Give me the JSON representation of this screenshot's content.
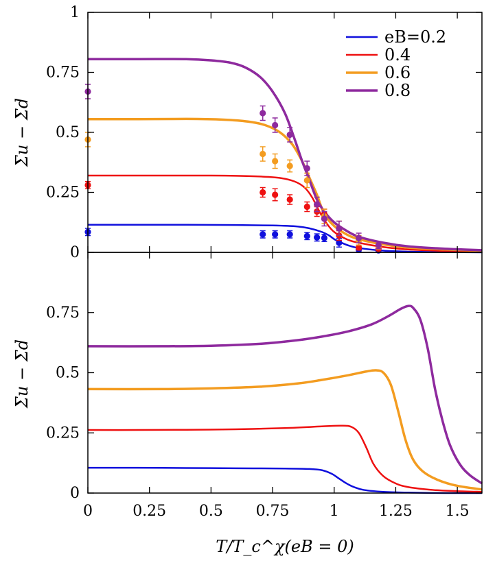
{
  "chart_data": [
    {
      "type": "line",
      "ylabel": "Σu − Σd",
      "xlim": [
        0,
        1.6
      ],
      "ylim": [
        0,
        1
      ],
      "x_ticks": [
        "0",
        "0.25",
        "0.5",
        "0.75",
        "1",
        "1.25",
        "1.5"
      ],
      "y_ticks": [
        "0",
        "0.25",
        "0.5",
        "0.75",
        "1"
      ],
      "legend": {
        "position": "top-right"
      },
      "series": [
        {
          "name": "eB=0.2",
          "color": "#1010dd",
          "curve": [
            [
              0,
              0.115
            ],
            [
              0.2,
              0.115
            ],
            [
              0.4,
              0.115
            ],
            [
              0.6,
              0.114
            ],
            [
              0.75,
              0.112
            ],
            [
              0.85,
              0.108
            ],
            [
              0.9,
              0.1
            ],
            [
              0.95,
              0.085
            ],
            [
              0.98,
              0.07
            ],
            [
              1.0,
              0.055
            ],
            [
              1.03,
              0.04
            ],
            [
              1.06,
              0.028
            ],
            [
              1.1,
              0.018
            ],
            [
              1.2,
              0.007
            ],
            [
              1.3,
              0.003
            ],
            [
              1.45,
              0.001
            ],
            [
              1.6,
              0.0
            ]
          ],
          "points": [
            [
              0,
              0.085,
              0.015
            ],
            [
              0.71,
              0.075,
              0.015
            ],
            [
              0.76,
              0.075,
              0.015
            ],
            [
              0.82,
              0.075,
              0.015
            ],
            [
              0.89,
              0.068,
              0.015
            ],
            [
              0.93,
              0.062,
              0.015
            ],
            [
              0.96,
              0.06,
              0.015
            ],
            [
              1.02,
              0.04,
              0.018
            ],
            [
              1.1,
              0.012,
              0.008
            ],
            [
              1.18,
              0.008,
              0.006
            ]
          ]
        },
        {
          "name": "0.4",
          "color": "#ee1111",
          "curve": [
            [
              0,
              0.32
            ],
            [
              0.3,
              0.32
            ],
            [
              0.5,
              0.32
            ],
            [
              0.6,
              0.319
            ],
            [
              0.7,
              0.316
            ],
            [
              0.78,
              0.31
            ],
            [
              0.84,
              0.295
            ],
            [
              0.88,
              0.27
            ],
            [
              0.91,
              0.23
            ],
            [
              0.94,
              0.17
            ],
            [
              0.97,
              0.12
            ],
            [
              1.0,
              0.085
            ],
            [
              1.05,
              0.055
            ],
            [
              1.1,
              0.04
            ],
            [
              1.2,
              0.022
            ],
            [
              1.3,
              0.012
            ],
            [
              1.45,
              0.006
            ],
            [
              1.6,
              0.003
            ]
          ],
          "points": [
            [
              0,
              0.28,
              0.015
            ],
            [
              0.71,
              0.25,
              0.02
            ],
            [
              0.76,
              0.24,
              0.025
            ],
            [
              0.82,
              0.22,
              0.02
            ],
            [
              0.89,
              0.19,
              0.02
            ],
            [
              0.93,
              0.17,
              0.02
            ],
            [
              0.96,
              0.16,
              0.02
            ],
            [
              1.02,
              0.07,
              0.02
            ],
            [
              1.1,
              0.02,
              0.01
            ],
            [
              1.18,
              0.015,
              0.008
            ]
          ]
        },
        {
          "name": "0.6",
          "color": "#f39c20",
          "curve": [
            [
              0,
              0.555
            ],
            [
              0.2,
              0.555
            ],
            [
              0.4,
              0.556
            ],
            [
              0.55,
              0.553
            ],
            [
              0.65,
              0.545
            ],
            [
              0.72,
              0.53
            ],
            [
              0.78,
              0.5
            ],
            [
              0.83,
              0.45
            ],
            [
              0.87,
              0.38
            ],
            [
              0.9,
              0.31
            ],
            [
              0.93,
              0.24
            ],
            [
              0.96,
              0.16
            ],
            [
              1.0,
              0.11
            ],
            [
              1.05,
              0.075
            ],
            [
              1.1,
              0.055
            ],
            [
              1.2,
              0.033
            ],
            [
              1.3,
              0.02
            ],
            [
              1.45,
              0.012
            ],
            [
              1.6,
              0.007
            ]
          ],
          "points": [
            [
              0,
              0.47,
              0.03
            ],
            [
              0.71,
              0.41,
              0.03
            ],
            [
              0.76,
              0.38,
              0.03
            ],
            [
              0.82,
              0.36,
              0.025
            ],
            [
              0.89,
              0.3,
              0.03
            ],
            [
              0.93,
              0.2,
              0.03
            ],
            [
              0.96,
              0.15,
              0.03
            ],
            [
              1.02,
              0.1,
              0.03
            ],
            [
              1.1,
              0.05,
              0.02
            ],
            [
              1.18,
              0.025,
              0.012
            ]
          ]
        },
        {
          "name": "0.8",
          "color": "#8e2a9e",
          "curve": [
            [
              0,
              0.805
            ],
            [
              0.2,
              0.805
            ],
            [
              0.4,
              0.805
            ],
            [
              0.5,
              0.8
            ],
            [
              0.58,
              0.79
            ],
            [
              0.64,
              0.77
            ],
            [
              0.7,
              0.73
            ],
            [
              0.75,
              0.67
            ],
            [
              0.8,
              0.58
            ],
            [
              0.84,
              0.47
            ],
            [
              0.87,
              0.38
            ],
            [
              0.9,
              0.3
            ],
            [
              0.93,
              0.22
            ],
            [
              0.96,
              0.17
            ],
            [
              1.0,
              0.125
            ],
            [
              1.05,
              0.09
            ],
            [
              1.1,
              0.065
            ],
            [
              1.2,
              0.04
            ],
            [
              1.3,
              0.025
            ],
            [
              1.45,
              0.015
            ],
            [
              1.6,
              0.009
            ]
          ],
          "points": [
            [
              0,
              0.67,
              0.03
            ],
            [
              0.71,
              0.58,
              0.03
            ],
            [
              0.76,
              0.53,
              0.03
            ],
            [
              0.82,
              0.49,
              0.03
            ],
            [
              0.89,
              0.35,
              0.03
            ],
            [
              0.93,
              0.2,
              0.03
            ],
            [
              0.96,
              0.14,
              0.03
            ],
            [
              1.02,
              0.1,
              0.03
            ],
            [
              1.1,
              0.06,
              0.02
            ],
            [
              1.18,
              0.03,
              0.015
            ]
          ]
        }
      ]
    },
    {
      "type": "line",
      "xlabel": "T/T_c^χ(eB = 0)",
      "ylabel": "Σu − Σd",
      "xlim": [
        0,
        1.6
      ],
      "ylim": [
        0,
        1
      ],
      "x_ticks": [
        "0",
        "0.25",
        "0.5",
        "0.75",
        "1",
        "1.25",
        "1.5"
      ],
      "y_ticks": [
        "0",
        "0.25",
        "0.5",
        "0.75"
      ],
      "series": [
        {
          "color": "#1010dd",
          "curve": [
            [
              0,
              0.105
            ],
            [
              0.2,
              0.105
            ],
            [
              0.4,
              0.104
            ],
            [
              0.6,
              0.103
            ],
            [
              0.8,
              0.102
            ],
            [
              0.9,
              0.1
            ],
            [
              0.95,
              0.095
            ],
            [
              0.99,
              0.08
            ],
            [
              1.02,
              0.06
            ],
            [
              1.05,
              0.04
            ],
            [
              1.08,
              0.025
            ],
            [
              1.12,
              0.013
            ],
            [
              1.2,
              0.005
            ],
            [
              1.3,
              0.002
            ],
            [
              1.45,
              0.0
            ],
            [
              1.6,
              0.0
            ]
          ]
        },
        {
          "color": "#ee1111",
          "curve": [
            [
              0,
              0.262
            ],
            [
              0.2,
              0.262
            ],
            [
              0.4,
              0.263
            ],
            [
              0.6,
              0.265
            ],
            [
              0.8,
              0.27
            ],
            [
              0.95,
              0.277
            ],
            [
              1.03,
              0.28
            ],
            [
              1.07,
              0.275
            ],
            [
              1.1,
              0.25
            ],
            [
              1.13,
              0.19
            ],
            [
              1.16,
              0.12
            ],
            [
              1.2,
              0.07
            ],
            [
              1.25,
              0.04
            ],
            [
              1.3,
              0.025
            ],
            [
              1.4,
              0.013
            ],
            [
              1.5,
              0.008
            ],
            [
              1.6,
              0.005
            ]
          ]
        },
        {
          "color": "#f39c20",
          "curve": [
            [
              0,
              0.432
            ],
            [
              0.3,
              0.432
            ],
            [
              0.5,
              0.435
            ],
            [
              0.7,
              0.442
            ],
            [
              0.85,
              0.455
            ],
            [
              0.95,
              0.47
            ],
            [
              1.05,
              0.488
            ],
            [
              1.13,
              0.505
            ],
            [
              1.17,
              0.51
            ],
            [
              1.2,
              0.5
            ],
            [
              1.23,
              0.45
            ],
            [
              1.26,
              0.34
            ],
            [
              1.29,
              0.22
            ],
            [
              1.32,
              0.14
            ],
            [
              1.36,
              0.09
            ],
            [
              1.42,
              0.055
            ],
            [
              1.5,
              0.03
            ],
            [
              1.6,
              0.015
            ]
          ]
        },
        {
          "color": "#8e2a9e",
          "curve": [
            [
              0,
              0.61
            ],
            [
              0.3,
              0.61
            ],
            [
              0.5,
              0.612
            ],
            [
              0.7,
              0.62
            ],
            [
              0.85,
              0.635
            ],
            [
              0.95,
              0.65
            ],
            [
              1.05,
              0.67
            ],
            [
              1.15,
              0.7
            ],
            [
              1.22,
              0.735
            ],
            [
              1.27,
              0.765
            ],
            [
              1.3,
              0.777
            ],
            [
              1.32,
              0.77
            ],
            [
              1.35,
              0.72
            ],
            [
              1.38,
              0.6
            ],
            [
              1.41,
              0.43
            ],
            [
              1.44,
              0.3
            ],
            [
              1.47,
              0.2
            ],
            [
              1.51,
              0.12
            ],
            [
              1.55,
              0.075
            ],
            [
              1.6,
              0.04
            ]
          ]
        }
      ]
    }
  ]
}
